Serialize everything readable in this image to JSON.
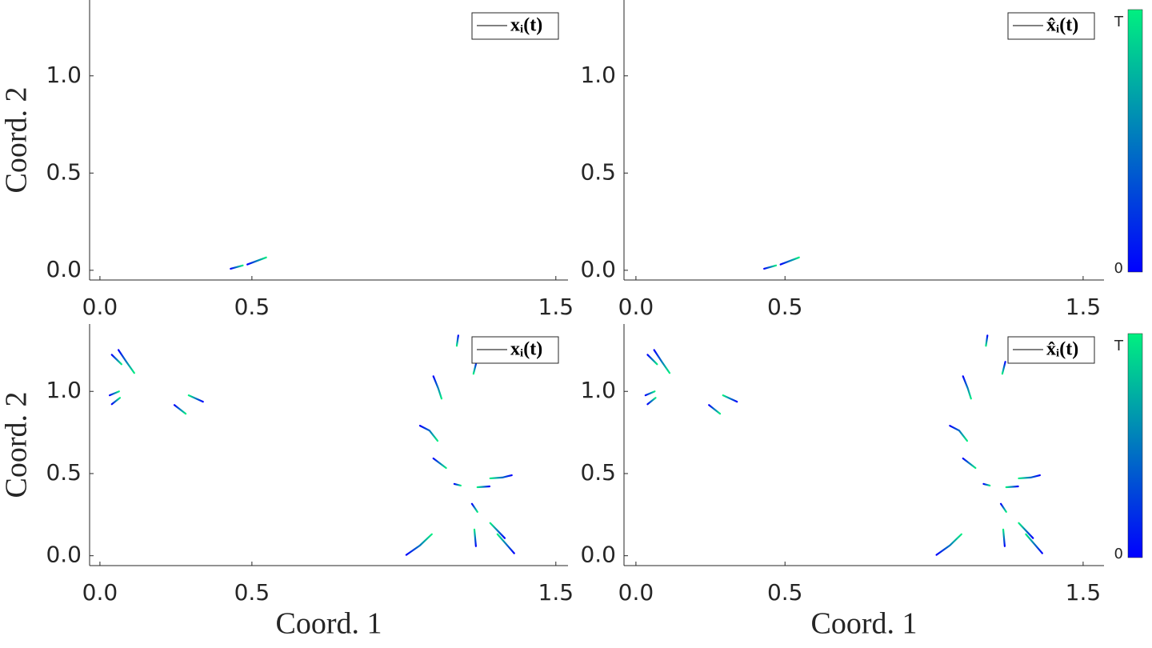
{
  "chart_data": [
    {
      "type": "trajectory",
      "ylabel": "Coord. 2",
      "xlim": [
        -0.034,
        1.54
      ],
      "ylim": [
        -0.05,
        1.39
      ],
      "xticks": [
        {
          "value": 0,
          "label": "0.0"
        },
        {
          "value": 0.5,
          "label": "0.5"
        },
        {
          "value": 1.5,
          "label": "1.5"
        }
      ],
      "yticks": [
        {
          "value": 0,
          "label": "0.0"
        },
        {
          "value": 0.5,
          "label": "0.5"
        },
        {
          "value": 1,
          "label": "1.0"
        }
      ],
      "colormap": [
        "#0000ff",
        "#00f080"
      ],
      "series": [
        {
          "name": "xᵢ(t)",
          "color": "#000000",
          "trajectories": [
            {
              "x": [
                0.43,
                0.47
              ],
              "y": [
                0.008,
                0.025
              ]
            },
            {
              "x": [
                0.485,
                0.547
              ],
              "y": [
                0.03,
                0.066
              ]
            }
          ]
        }
      ]
    },
    {
      "type": "trajectory",
      "xlim": [
        -0.04,
        1.57
      ],
      "ylim": [
        -0.05,
        1.39
      ],
      "xticks": [
        {
          "value": 0,
          "label": "0.0"
        },
        {
          "value": 0.5,
          "label": "0.5"
        },
        {
          "value": 1.5,
          "label": "1.5"
        }
      ],
      "yticks": [
        {
          "value": 0,
          "label": "0.0"
        },
        {
          "value": 0.5,
          "label": "0.5"
        },
        {
          "value": 1,
          "label": "1.0"
        }
      ],
      "colormap": [
        "#0000ff",
        "#00f080"
      ],
      "colorbar_ticks": [
        "0",
        "T"
      ],
      "series": [
        {
          "name": "x̂ᵢ(t)",
          "color": "#000000",
          "trajectories": [
            {
              "x": [
                0.43,
                0.47
              ],
              "y": [
                0.008,
                0.025
              ]
            },
            {
              "x": [
                0.485,
                0.547
              ],
              "y": [
                0.03,
                0.066
              ]
            }
          ]
        }
      ]
    },
    {
      "type": "trajectory",
      "ylabel": "Coord. 2",
      "xlabel": "Coord. 1",
      "xlim": [
        -0.034,
        1.54
      ],
      "ylim": [
        -0.06,
        1.41
      ],
      "xticks": [
        {
          "value": 0,
          "label": "0.0"
        },
        {
          "value": 0.5,
          "label": "0.5"
        },
        {
          "value": 1.5,
          "label": "1.5"
        }
      ],
      "yticks": [
        {
          "value": 0,
          "label": "0.0"
        },
        {
          "value": 0.5,
          "label": "0.5"
        },
        {
          "value": 1,
          "label": "1.0"
        }
      ],
      "colormap": [
        "#0000ff",
        "#00f080"
      ],
      "series": [
        {
          "name": "xᵢ(t)",
          "color": "#000000",
          "trajectories": [
            {
              "x": [
                0.039,
                0.071
              ],
              "y": [
                1.223,
                1.165
              ]
            },
            {
              "x": [
                0.061,
                0.087,
                0.113
              ],
              "y": [
                1.252,
                1.18,
                1.112
              ]
            },
            {
              "x": [
                0.032,
                0.063
              ],
              "y": [
                0.976,
                1.0
              ]
            },
            {
              "x": [
                0.039,
                0.066
              ],
              "y": [
                0.922,
                0.961
              ]
            },
            {
              "x": [
                0.245,
                0.282
              ],
              "y": [
                0.917,
                0.864
              ]
            },
            {
              "x": [
                0.339,
                0.292
              ],
              "y": [
                0.937,
                0.976
              ]
            },
            {
              "x": [
                1.008,
                1.053,
                1.092
              ],
              "y": [
                0.005,
                0.063,
                0.131
              ]
            },
            {
              "x": [
                1.097,
                1.113,
                1.124
              ],
              "y": [
                1.092,
                1.019,
                0.956
              ]
            },
            {
              "x": [
                1.179,
                1.174
              ],
              "y": [
                1.34,
                1.277
              ]
            },
            {
              "x": [
                1.239,
                1.229
              ],
              "y": [
                1.18,
                1.107
              ]
            },
            {
              "x": [
                1.053,
                1.084,
                1.111
              ],
              "y": [
                0.791,
                0.762,
                0.699
              ]
            },
            {
              "x": [
                1.097,
                1.139
              ],
              "y": [
                0.592,
                0.534
              ]
            },
            {
              "x": [
                1.166,
                1.187
              ],
              "y": [
                0.437,
                0.427
              ]
            },
            {
              "x": [
                1.282,
                1.242
              ],
              "y": [
                0.422,
                0.417
              ]
            },
            {
              "x": [
                1.355,
                1.324,
                1.284
              ],
              "y": [
                0.49,
                0.476,
                0.471
              ]
            },
            {
              "x": [
                1.224,
                1.242
              ],
              "y": [
                0.316,
                0.267
              ]
            },
            {
              "x": [
                1.237,
                1.232
              ],
              "y": [
                0.058,
                0.16
              ]
            },
            {
              "x": [
                1.332,
                1.284
              ],
              "y": [
                0.107,
                0.199
              ]
            },
            {
              "x": [
                1.363,
                1.308
              ],
              "y": [
                0.015,
                0.131
              ]
            }
          ]
        }
      ]
    },
    {
      "type": "trajectory",
      "xlabel": "Coord. 1",
      "xlim": [
        -0.04,
        1.57
      ],
      "ylim": [
        -0.06,
        1.41
      ],
      "xticks": [
        {
          "value": 0,
          "label": "0.0"
        },
        {
          "value": 0.5,
          "label": "0.5"
        },
        {
          "value": 1.5,
          "label": "1.5"
        }
      ],
      "yticks": [
        {
          "value": 0,
          "label": "0.0"
        },
        {
          "value": 0.5,
          "label": "0.5"
        },
        {
          "value": 1,
          "label": "1.0"
        }
      ],
      "colormap": [
        "#0000ff",
        "#00f080"
      ],
      "colorbar_ticks": [
        "0",
        "T"
      ],
      "series": [
        {
          "name": "x̂ᵢ(t)",
          "color": "#000000",
          "trajectories": [
            {
              "x": [
                0.039,
                0.071
              ],
              "y": [
                1.223,
                1.165
              ]
            },
            {
              "x": [
                0.061,
                0.087,
                0.113
              ],
              "y": [
                1.252,
                1.18,
                1.112
              ]
            },
            {
              "x": [
                0.032,
                0.063
              ],
              "y": [
                0.976,
                1.0
              ]
            },
            {
              "x": [
                0.039,
                0.066
              ],
              "y": [
                0.922,
                0.961
              ]
            },
            {
              "x": [
                0.245,
                0.282
              ],
              "y": [
                0.917,
                0.864
              ]
            },
            {
              "x": [
                0.339,
                0.292
              ],
              "y": [
                0.937,
                0.976
              ]
            },
            {
              "x": [
                1.008,
                1.053,
                1.092
              ],
              "y": [
                0.005,
                0.063,
                0.131
              ]
            },
            {
              "x": [
                1.097,
                1.113,
                1.124
              ],
              "y": [
                1.092,
                1.019,
                0.956
              ]
            },
            {
              "x": [
                1.179,
                1.174
              ],
              "y": [
                1.34,
                1.277
              ]
            },
            {
              "x": [
                1.239,
                1.229
              ],
              "y": [
                1.18,
                1.107
              ]
            },
            {
              "x": [
                1.053,
                1.084,
                1.111
              ],
              "y": [
                0.791,
                0.762,
                0.699
              ]
            },
            {
              "x": [
                1.097,
                1.139
              ],
              "y": [
                0.592,
                0.534
              ]
            },
            {
              "x": [
                1.166,
                1.187
              ],
              "y": [
                0.437,
                0.427
              ]
            },
            {
              "x": [
                1.282,
                1.242
              ],
              "y": [
                0.422,
                0.417
              ]
            },
            {
              "x": [
                1.355,
                1.324,
                1.284
              ],
              "y": [
                0.49,
                0.476,
                0.471
              ]
            },
            {
              "x": [
                1.224,
                1.242
              ],
              "y": [
                0.316,
                0.267
              ]
            },
            {
              "x": [
                1.237,
                1.232
              ],
              "y": [
                0.058,
                0.16
              ]
            },
            {
              "x": [
                1.332,
                1.284
              ],
              "y": [
                0.107,
                0.199
              ]
            },
            {
              "x": [
                1.363,
                1.308
              ],
              "y": [
                0.015,
                0.131
              ]
            }
          ]
        }
      ]
    }
  ]
}
